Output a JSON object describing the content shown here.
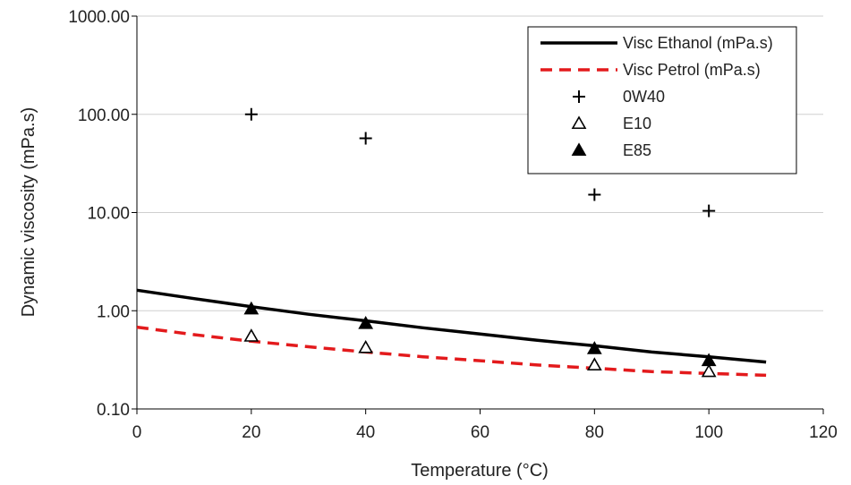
{
  "chart_data": {
    "type": "scatter",
    "title": "",
    "xlabel": "Temperature (°C)",
    "ylabel": "Dynamic viscosity (mPa.s)",
    "xlim": [
      0,
      120
    ],
    "ylim": [
      0.1,
      1000
    ],
    "yscale": "log",
    "xticks": [
      "0",
      "20",
      "40",
      "60",
      "80",
      "100",
      "120"
    ],
    "yticks": [
      "0.10",
      "1.00",
      "10.00",
      "100.00",
      "1000.00"
    ],
    "grid": "horizontal",
    "legend_position": "top-right",
    "series": [
      {
        "name": "Visc Ethanol (mPa.s)",
        "kind": "line",
        "style": "solid",
        "color": "#000000",
        "x": [
          0,
          10,
          20,
          30,
          40,
          50,
          60,
          70,
          80,
          90,
          100,
          110
        ],
        "y": [
          1.62,
          1.33,
          1.1,
          0.92,
          0.79,
          0.67,
          0.58,
          0.5,
          0.44,
          0.38,
          0.34,
          0.3
        ]
      },
      {
        "name": "Visc Petrol (mPa.s)",
        "kind": "line",
        "style": "dashed",
        "color": "#e31a1c",
        "x": [
          0,
          10,
          20,
          30,
          40,
          50,
          60,
          70,
          80,
          90,
          100,
          110
        ],
        "y": [
          0.68,
          0.57,
          0.49,
          0.43,
          0.38,
          0.34,
          0.31,
          0.28,
          0.26,
          0.24,
          0.23,
          0.22
        ]
      },
      {
        "name": "0W40",
        "kind": "marker",
        "marker": "plus",
        "color": "#000000",
        "x": [
          20,
          40,
          80,
          100
        ],
        "y": [
          100,
          57,
          15.2,
          10.4
        ]
      },
      {
        "name": "E10",
        "kind": "marker",
        "marker": "triangle-open",
        "color": "#000000",
        "x": [
          20,
          40,
          80,
          100
        ],
        "y": [
          0.55,
          0.42,
          0.28,
          0.24
        ]
      },
      {
        "name": "E85",
        "kind": "marker",
        "marker": "triangle-filled",
        "color": "#000000",
        "x": [
          20,
          40,
          80,
          100
        ],
        "y": [
          1.04,
          0.74,
          0.41,
          0.31
        ]
      }
    ]
  }
}
